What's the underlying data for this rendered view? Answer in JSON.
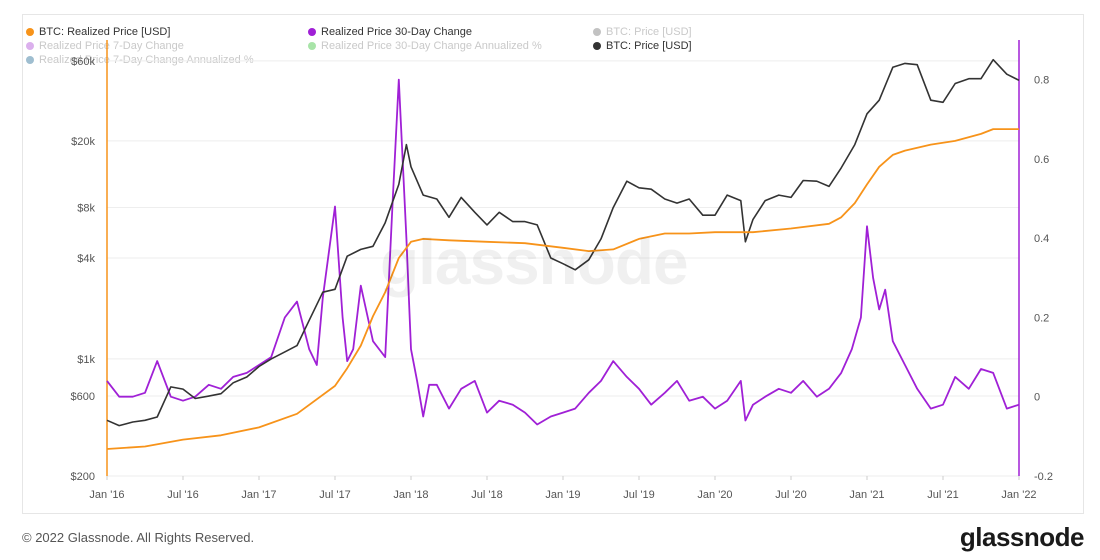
{
  "watermark": "glassnode",
  "footer": {
    "copyright": "© 2022 Glassnode. All Rights Reserved.",
    "brand": "glassnode"
  },
  "legend": [
    {
      "label": "BTC: Realized Price [USD]",
      "color": "#f7931a",
      "active": true
    },
    {
      "label": "Realized Price 30-Day Change",
      "color": "#a020d6",
      "active": true
    },
    {
      "label": "BTC: Price [USD]",
      "color": "#777777",
      "active": false
    },
    {
      "label": "Realized Price 7-Day Change",
      "color": "#b04fd6",
      "active": false
    },
    {
      "label": "Realized Price 30-Day Change Annualized %",
      "color": "#3fc43f",
      "active": false
    },
    {
      "label": "BTC: Price [USD]",
      "color": "#333333",
      "active": true
    },
    {
      "label": "Realized Price 7-Day Change Annualized %",
      "color": "#2a6f97",
      "active": false
    }
  ],
  "chart_data": {
    "type": "line",
    "x_ticks": [
      "Jan '16",
      "Jul '16",
      "Jan '17",
      "Jul '17",
      "Jan '18",
      "Jul '18",
      "Jan '19",
      "Jul '19",
      "Jan '20",
      "Jul '20",
      "Jan '21",
      "Jul '21",
      "Jan '22"
    ],
    "x_range": [
      2016.0,
      2022.0
    ],
    "y_left": {
      "scale": "log",
      "range": [
        200,
        80000
      ],
      "ticks": [
        {
          "value": 200,
          "label": "$200"
        },
        {
          "value": 600,
          "label": "$600"
        },
        {
          "value": 1000,
          "label": "$1k"
        },
        {
          "value": 4000,
          "label": "$4k"
        },
        {
          "value": 8000,
          "label": "$8k"
        },
        {
          "value": 20000,
          "label": "$20k"
        },
        {
          "value": 60000,
          "label": "$60k"
        }
      ]
    },
    "y_right": {
      "scale": "linear",
      "range": [
        -0.2,
        0.9
      ],
      "ticks": [
        {
          "value": -0.2,
          "label": "-0.2"
        },
        {
          "value": 0,
          "label": "0"
        },
        {
          "value": 0.2,
          "label": "0.2"
        },
        {
          "value": 0.4,
          "label": "0.4"
        },
        {
          "value": 0.6,
          "label": "0.6"
        },
        {
          "value": 0.8,
          "label": "0.8"
        }
      ]
    },
    "grid": true,
    "legend_position": "top-left",
    "series": [
      {
        "name": "BTC: Price [USD]",
        "axis": "left",
        "color": "#333333",
        "x": [
          2016.0,
          2016.08,
          2016.17,
          2016.25,
          2016.33,
          2016.42,
          2016.5,
          2016.58,
          2016.67,
          2016.75,
          2016.83,
          2016.92,
          2017.0,
          2017.08,
          2017.17,
          2017.25,
          2017.33,
          2017.42,
          2017.5,
          2017.58,
          2017.67,
          2017.75,
          2017.83,
          2017.92,
          2017.97,
          2018.0,
          2018.08,
          2018.17,
          2018.25,
          2018.33,
          2018.42,
          2018.5,
          2018.58,
          2018.67,
          2018.75,
          2018.83,
          2018.92,
          2019.0,
          2019.08,
          2019.17,
          2019.25,
          2019.33,
          2019.42,
          2019.5,
          2019.58,
          2019.67,
          2019.75,
          2019.83,
          2019.92,
          2020.0,
          2020.08,
          2020.17,
          2020.2,
          2020.25,
          2020.33,
          2020.42,
          2020.5,
          2020.58,
          2020.67,
          2020.75,
          2020.83,
          2020.92,
          2021.0,
          2021.08,
          2021.17,
          2021.25,
          2021.33,
          2021.42,
          2021.5,
          2021.58,
          2021.67,
          2021.75,
          2021.83,
          2021.92,
          2022.0
        ],
        "y": [
          430,
          400,
          420,
          430,
          450,
          680,
          660,
          580,
          600,
          620,
          720,
          780,
          900,
          1000,
          1100,
          1200,
          1700,
          2500,
          2600,
          4100,
          4500,
          4700,
          6500,
          11000,
          19000,
          14000,
          9500,
          9000,
          7000,
          9200,
          7500,
          6300,
          7500,
          6600,
          6600,
          6300,
          4000,
          3700,
          3400,
          3900,
          5200,
          8000,
          11500,
          10500,
          10300,
          9000,
          8500,
          9000,
          7200,
          7200,
          9500,
          8800,
          5000,
          6800,
          8800,
          9500,
          9200,
          11600,
          11500,
          10700,
          13800,
          19000,
          29000,
          35000,
          55000,
          58000,
          57000,
          35000,
          34000,
          44000,
          47000,
          47000,
          61000,
          50000,
          46000
        ]
      },
      {
        "name": "BTC: Realized Price [USD]",
        "axis": "left",
        "color": "#f7931a",
        "x": [
          2016.0,
          2016.25,
          2016.5,
          2016.75,
          2017.0,
          2017.25,
          2017.5,
          2017.58,
          2017.67,
          2017.75,
          2017.83,
          2017.92,
          2018.0,
          2018.08,
          2018.25,
          2018.5,
          2018.75,
          2019.0,
          2019.17,
          2019.33,
          2019.5,
          2019.67,
          2019.83,
          2020.0,
          2020.25,
          2020.5,
          2020.75,
          2020.83,
          2020.92,
          2021.0,
          2021.08,
          2021.17,
          2021.25,
          2021.42,
          2021.58,
          2021.75,
          2021.83,
          2022.0
        ],
        "y": [
          290,
          300,
          330,
          350,
          390,
          470,
          690,
          880,
          1200,
          1800,
          2500,
          4000,
          5000,
          5200,
          5100,
          5000,
          4900,
          4600,
          4400,
          4500,
          5200,
          5600,
          5600,
          5700,
          5700,
          6000,
          6400,
          7000,
          8500,
          11000,
          14000,
          16500,
          17500,
          19000,
          20000,
          22000,
          23500,
          23500
        ]
      },
      {
        "name": "Realized Price 30-Day Change",
        "axis": "right",
        "color": "#a020d6",
        "x": [
          2016.0,
          2016.08,
          2016.17,
          2016.25,
          2016.33,
          2016.42,
          2016.5,
          2016.58,
          2016.67,
          2016.75,
          2016.83,
          2016.92,
          2017.0,
          2017.08,
          2017.17,
          2017.25,
          2017.33,
          2017.38,
          2017.42,
          2017.5,
          2017.55,
          2017.58,
          2017.62,
          2017.67,
          2017.75,
          2017.83,
          2017.88,
          2017.92,
          2017.97,
          2018.0,
          2018.04,
          2018.08,
          2018.12,
          2018.17,
          2018.25,
          2018.33,
          2018.42,
          2018.5,
          2018.58,
          2018.67,
          2018.75,
          2018.83,
          2018.92,
          2019.0,
          2019.08,
          2019.17,
          2019.25,
          2019.33,
          2019.42,
          2019.5,
          2019.58,
          2019.67,
          2019.75,
          2019.83,
          2019.92,
          2020.0,
          2020.08,
          2020.17,
          2020.2,
          2020.25,
          2020.33,
          2020.42,
          2020.5,
          2020.58,
          2020.67,
          2020.75,
          2020.83,
          2020.9,
          2020.96,
          2021.0,
          2021.04,
          2021.08,
          2021.12,
          2021.17,
          2021.25,
          2021.33,
          2021.42,
          2021.5,
          2021.58,
          2021.67,
          2021.75,
          2021.83,
          2021.92,
          2022.0
        ],
        "y": [
          0.04,
          0.0,
          0.0,
          0.01,
          0.09,
          0.0,
          -0.01,
          0.0,
          0.03,
          0.02,
          0.05,
          0.06,
          0.08,
          0.1,
          0.2,
          0.24,
          0.12,
          0.08,
          0.25,
          0.48,
          0.2,
          0.09,
          0.12,
          0.28,
          0.14,
          0.1,
          0.5,
          0.8,
          0.4,
          0.12,
          0.04,
          -0.05,
          0.03,
          0.03,
          -0.03,
          0.02,
          0.04,
          -0.04,
          -0.01,
          -0.02,
          -0.04,
          -0.07,
          -0.05,
          -0.04,
          -0.03,
          0.01,
          0.04,
          0.09,
          0.05,
          0.02,
          -0.02,
          0.01,
          0.04,
          -0.01,
          0.0,
          -0.03,
          -0.01,
          0.04,
          -0.06,
          -0.02,
          0.0,
          0.02,
          0.01,
          0.04,
          0.0,
          0.02,
          0.06,
          0.12,
          0.2,
          0.43,
          0.3,
          0.22,
          0.27,
          0.14,
          0.08,
          0.02,
          -0.03,
          -0.02,
          0.05,
          0.02,
          0.07,
          0.06,
          -0.03,
          -0.02
        ]
      }
    ]
  }
}
